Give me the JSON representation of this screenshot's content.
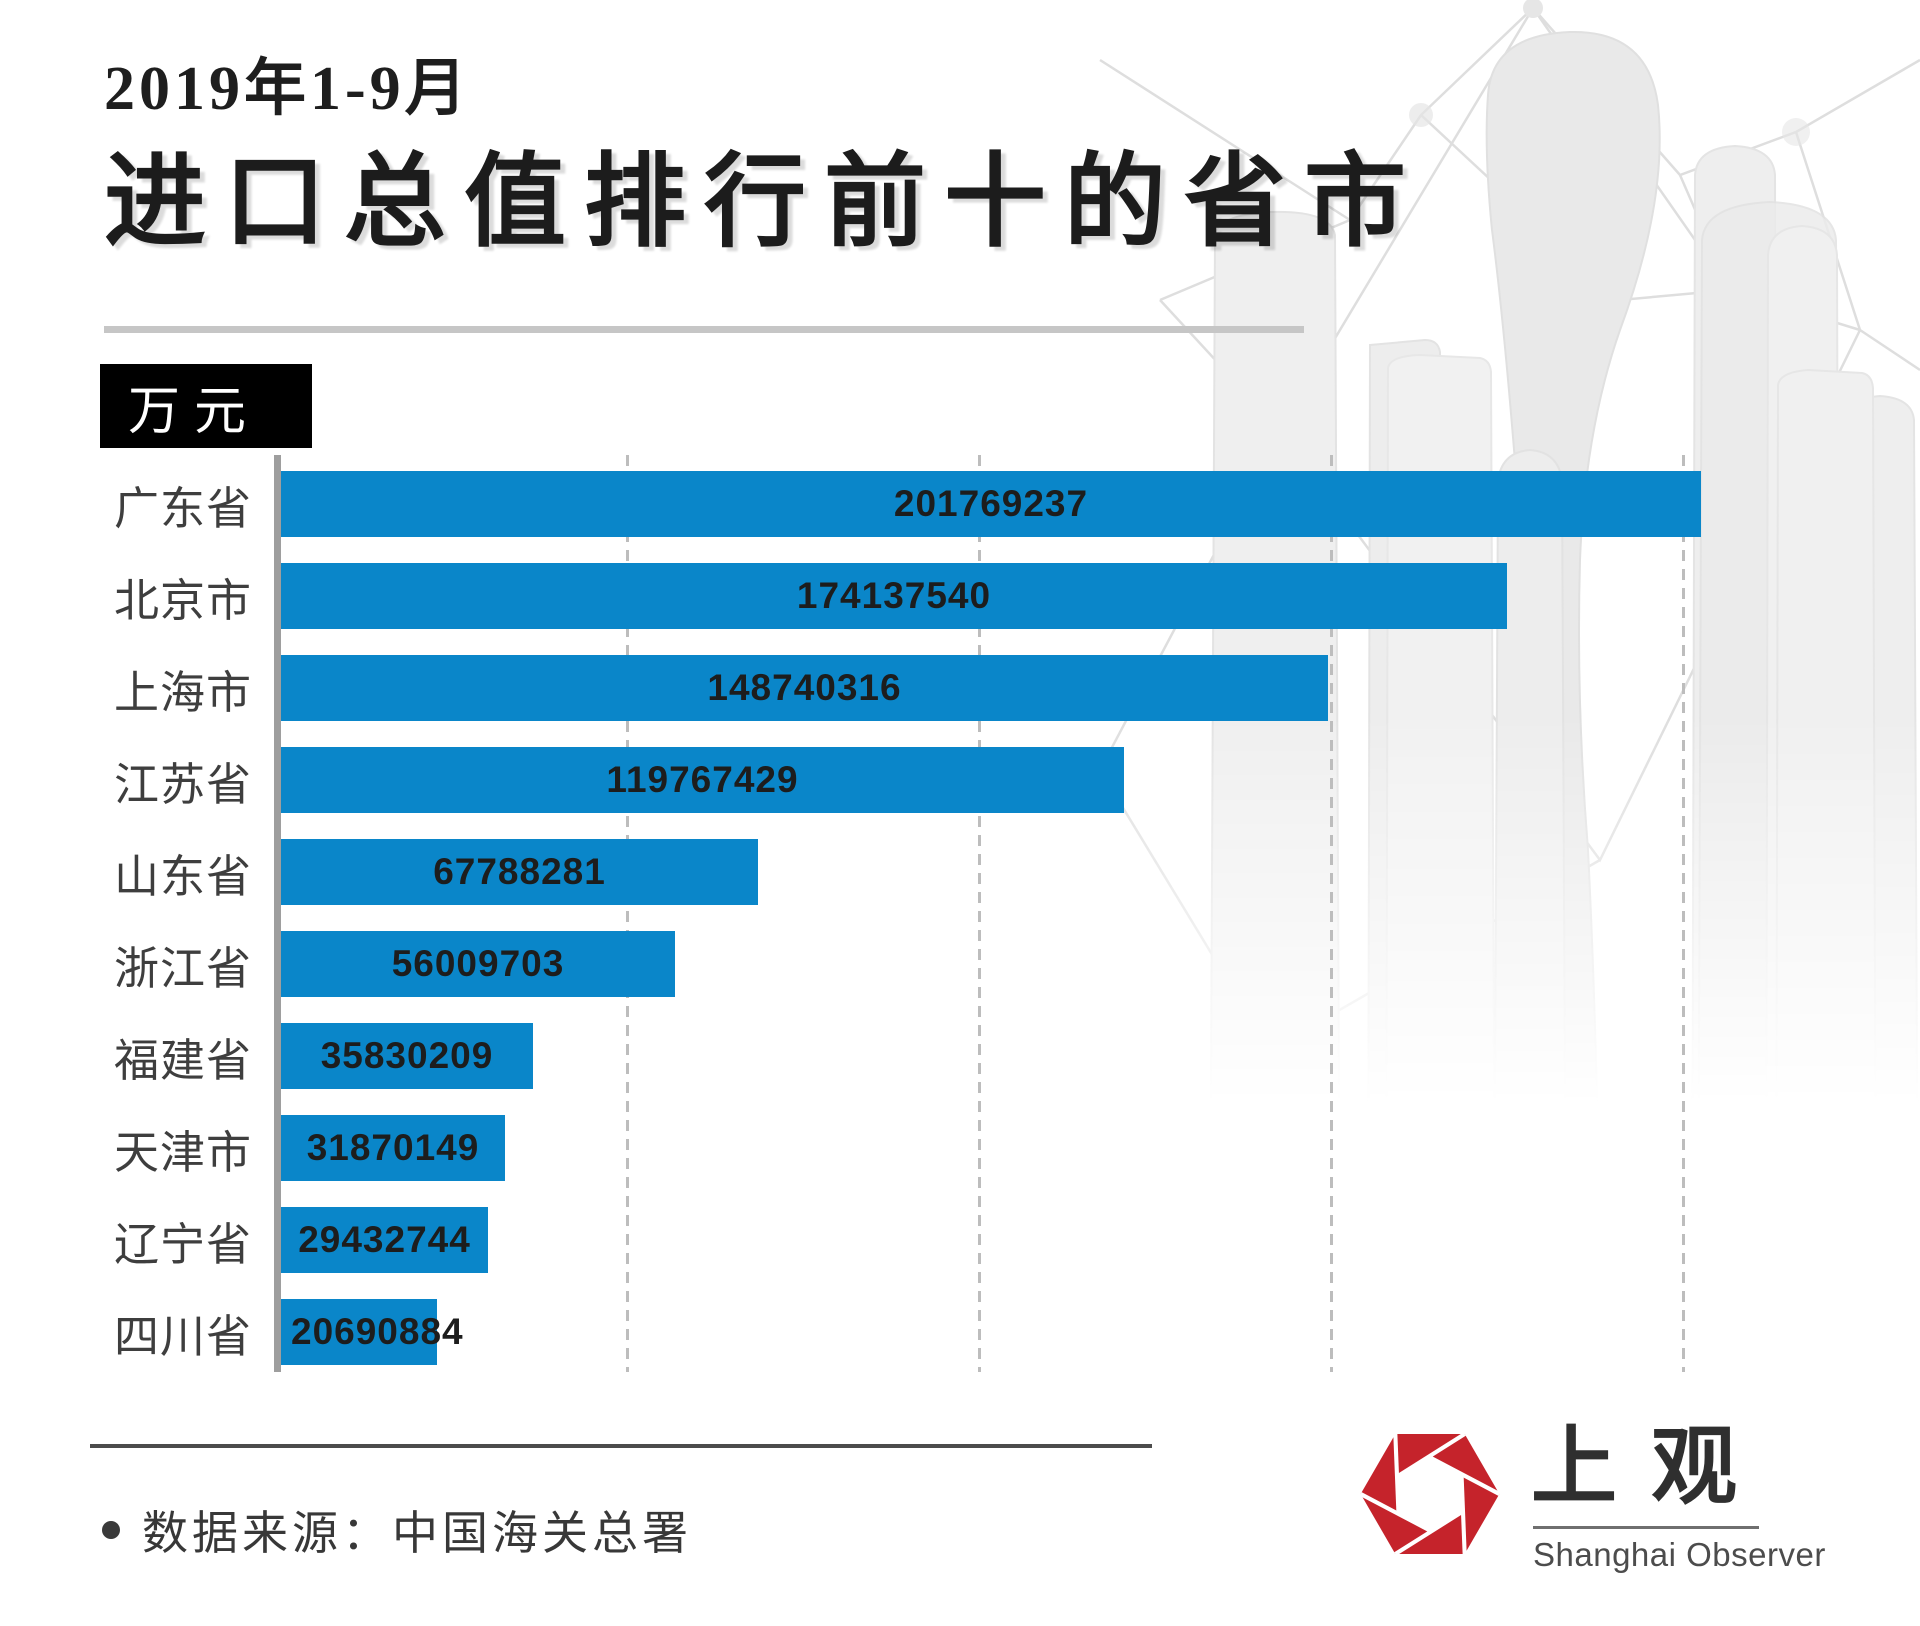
{
  "header": {
    "period": "2019年1-9月",
    "title": "进口总值排行前十的省市",
    "unit_badge": "万元"
  },
  "chart_data": {
    "type": "bar",
    "orientation": "horizontal",
    "title": "2019年1-9月进口总值排行前十的省市",
    "unit": "万元",
    "categories": [
      "广东省",
      "北京市",
      "上海市",
      "江苏省",
      "山东省",
      "浙江省",
      "福建省",
      "天津市",
      "辽宁省",
      "四川省"
    ],
    "values": [
      201769237,
      174137540,
      148740316,
      119767429,
      67788281,
      56009703,
      35830209,
      31870149,
      29432744,
      20690884
    ],
    "xlim": [
      0,
      210000000
    ],
    "gridline_interval": 50000000,
    "grid": true,
    "legend_position": "none",
    "bar_color": "#0a86c9",
    "value_label_position": "inside-center"
  },
  "footer": {
    "source": "数据来源：中国海关总署"
  },
  "logo": {
    "name_cn": "上观",
    "name_en": "Shanghai Observer",
    "accent_color": "#c5232b"
  }
}
